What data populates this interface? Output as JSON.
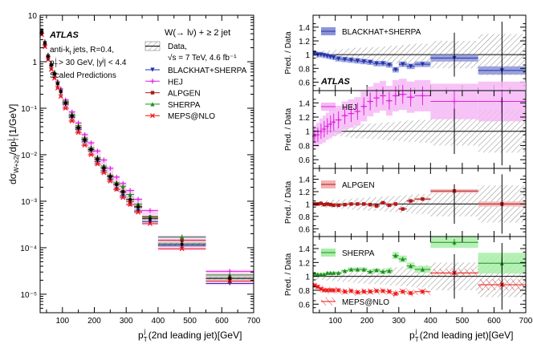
{
  "colors": {
    "data": "#000000",
    "blackhat": "#2233aa",
    "blackhat_band": "#8c94d8",
    "hej": "#e020e0",
    "hej_band": "#f6b8f6",
    "alpgen": "#b01818",
    "alpgen_band": "#f3b3b3",
    "sherpa": "#1f8f1f",
    "sherpa_band": "#a8eea8",
    "meps": "#ee1111",
    "hatch": "#777777"
  },
  "chart_data": [
    {
      "type": "line",
      "title": "W(→ lν) + ≥ 2 jet",
      "xlabel": "p_T^j (2nd leading jet)[GeV]",
      "ylabel": "dσ_{W+≥2j}/dp_T^j [1/GeV]",
      "xlim": [
        30,
        700
      ],
      "ylim": [
        4e-06,
        10
      ],
      "yscale": "log",
      "xticks": [
        100,
        200,
        300,
        400,
        500,
        600,
        700
      ],
      "ytick_labels": [
        "10",
        "1",
        "10⁻¹",
        "10⁻²",
        "10⁻³",
        "10⁻⁴",
        "10⁻⁵"
      ],
      "annotations": [
        "ATLAS",
        "anti-k_t jets, R=0.4,",
        "p_T^j > 30 GeV, |y^j| < 4.4",
        "Scaled Predictions",
        "√s = 7 TeV, 4.6 fb⁻¹"
      ],
      "bins": [
        [
          30,
          40
        ],
        [
          40,
          50
        ],
        [
          50,
          60
        ],
        [
          60,
          70
        ],
        [
          70,
          80
        ],
        [
          80,
          90
        ],
        [
          90,
          100
        ],
        [
          100,
          120
        ],
        [
          120,
          140
        ],
        [
          140,
          160
        ],
        [
          160,
          180
        ],
        [
          180,
          200
        ],
        [
          200,
          220
        ],
        [
          220,
          240
        ],
        [
          240,
          260
        ],
        [
          260,
          280
        ],
        [
          280,
          300
        ],
        [
          300,
          325
        ],
        [
          325,
          350
        ],
        [
          350,
          400
        ],
        [
          400,
          550
        ],
        [
          550,
          700
        ]
      ],
      "series": [
        {
          "name": "Data,",
          "values": [
            4.4,
            2.5,
            1.3,
            0.85,
            0.55,
            0.34,
            0.23,
            0.13,
            0.068,
            0.038,
            0.021,
            0.013,
            0.0081,
            0.0052,
            0.0034,
            0.0023,
            0.0016,
            0.0011,
            0.00075,
            0.00042,
            0.00012,
            2.2e-05
          ]
        },
        {
          "name": "BLACKHAT+SHERPA",
          "values": [
            4.5,
            2.5,
            1.3,
            0.84,
            0.54,
            0.33,
            0.22,
            0.12,
            0.063,
            0.035,
            0.019,
            0.012,
            0.0072,
            0.0045,
            0.003,
            0.0018,
            0.0013,
            0.00085,
            0.00062,
            0.00036,
            0.00011,
            1.7e-05
          ]
        },
        {
          "name": "HEJ",
          "values": [
            4.1,
            2.3,
            1.3,
            0.83,
            0.56,
            0.37,
            0.26,
            0.15,
            0.083,
            0.048,
            0.027,
            0.018,
            0.012,
            0.0077,
            0.0051,
            0.0033,
            0.0024,
            0.0017,
            0.0011,
            0.00063,
            0.00017,
            3.1e-05
          ]
        },
        {
          "name": "ALPGEN",
          "values": [
            4.4,
            2.5,
            1.3,
            0.84,
            0.55,
            0.34,
            0.23,
            0.13,
            0.068,
            0.038,
            0.021,
            0.013,
            0.0081,
            0.0052,
            0.0034,
            0.0023,
            0.0016,
            0.001,
            0.00078,
            0.00045,
            0.000145,
            2.2e-05
          ]
        },
        {
          "name": "SHERPA",
          "values": [
            4.6,
            2.6,
            1.35,
            0.87,
            0.58,
            0.36,
            0.24,
            0.14,
            0.074,
            0.042,
            0.023,
            0.014,
            0.0087,
            0.0057,
            0.0036,
            0.0025,
            0.0021,
            0.0014,
            0.00087,
            0.00047,
            0.00017,
            2.6e-05
          ]
        },
        {
          "name": "MEPS@NLO",
          "values": [
            3.8,
            2.1,
            1.1,
            0.68,
            0.44,
            0.27,
            0.18,
            0.1,
            0.053,
            0.03,
            0.016,
            0.01,
            0.0063,
            0.0041,
            0.0027,
            0.0018,
            0.0012,
            0.00085,
            0.00058,
            0.00033,
            9.5e-05,
            1.9e-05
          ]
        }
      ]
    },
    {
      "type": "line",
      "xlabel": "p_T^j (2nd leading jet)[GeV]",
      "ylabel": "Pred. / Data",
      "xlim": [
        30,
        700
      ],
      "ylim": [
        0.5,
        1.55
      ],
      "xticks": [
        100,
        200,
        300,
        400,
        500,
        600,
        700
      ],
      "yticks": [
        0.6,
        0.8,
        1.0,
        1.2,
        1.4
      ],
      "data_uncertainty": [
        0.05,
        0.05,
        0.05,
        0.06,
        0.06,
        0.06,
        0.07,
        0.07,
        0.08,
        0.09,
        0.1,
        0.1,
        0.11,
        0.11,
        0.12,
        0.13,
        0.13,
        0.14,
        0.15,
        0.16,
        0.2,
        0.3
      ],
      "panels": [
        {
          "name": "BLACKHAT+SHERPA",
          "ratio": [
            1.02,
            1.0,
            1.0,
            0.99,
            0.98,
            0.97,
            0.96,
            0.94,
            0.93,
            0.92,
            0.91,
            0.9,
            0.89,
            0.87,
            0.87,
            0.85,
            0.78,
            0.86,
            0.83,
            0.86,
            0.95,
            0.77
          ],
          "band": [
            0.04,
            0.04,
            0.04,
            0.04,
            0.04,
            0.04,
            0.04,
            0.04,
            0.04,
            0.04,
            0.04,
            0.04,
            0.04,
            0.04,
            0.04,
            0.04,
            0.04,
            0.04,
            0.04,
            0.04,
            0.05,
            0.06
          ]
        },
        {
          "name": "HEJ",
          "ratio": [
            0.93,
            0.95,
            1.0,
            1.03,
            1.07,
            1.1,
            1.13,
            1.16,
            1.22,
            1.25,
            1.28,
            1.35,
            1.42,
            1.47,
            1.5,
            1.43,
            1.5,
            1.52,
            1.48,
            1.5,
            1.42,
            1.42
          ],
          "band": [
            0.15,
            0.17,
            0.18,
            0.19,
            0.19,
            0.2,
            0.2,
            0.2,
            0.2,
            0.2,
            0.2,
            0.21,
            0.21,
            0.21,
            0.21,
            0.21,
            0.22,
            0.22,
            0.22,
            0.22,
            0.25,
            0.28
          ]
        },
        {
          "name": "ALPGEN",
          "ratio": [
            1.0,
            1.0,
            1.01,
            0.99,
            1.0,
            0.99,
            0.98,
            0.98,
            0.99,
            1.0,
            1.0,
            1.0,
            0.99,
            0.97,
            1.02,
            0.98,
            1.0,
            0.92,
            1.05,
            1.08,
            1.21,
            1.0
          ],
          "band": [
            0.02,
            0.02,
            0.02,
            0.02,
            0.02,
            0.02,
            0.02,
            0.02,
            0.02,
            0.02,
            0.02,
            0.02,
            0.02,
            0.02,
            0.02,
            0.02,
            0.02,
            0.02,
            0.02,
            0.02,
            0.03,
            0.04
          ]
        },
        {
          "name": "SHERPA",
          "ratio": [
            1.04,
            1.03,
            1.03,
            1.03,
            1.05,
            1.05,
            1.05,
            1.05,
            1.08,
            1.1,
            1.1,
            1.1,
            1.07,
            1.09,
            1.07,
            1.08,
            1.3,
            1.25,
            1.15,
            1.1,
            1.49,
            1.19
          ],
          "band": [
            0.02,
            0.02,
            0.02,
            0.02,
            0.02,
            0.02,
            0.02,
            0.02,
            0.02,
            0.03,
            0.03,
            0.03,
            0.03,
            0.03,
            0.03,
            0.04,
            0.05,
            0.05,
            0.05,
            0.05,
            0.08,
            0.15
          ]
        },
        {
          "name": "MEPS@NLO",
          "ratio": [
            0.87,
            0.85,
            0.82,
            0.8,
            0.8,
            0.8,
            0.8,
            0.8,
            0.78,
            0.79,
            0.77,
            0.78,
            0.78,
            0.79,
            0.79,
            0.78,
            0.75,
            0.78,
            0.76,
            0.78,
            1.05,
            0.88
          ],
          "band": [
            0.05,
            0.05,
            0.05,
            0.05,
            0.05,
            0.05,
            0.05,
            0.05,
            0.05,
            0.05,
            0.05,
            0.05,
            0.05,
            0.05,
            0.05,
            0.05,
            0.05,
            0.05,
            0.05,
            0.05,
            0.06,
            0.08
          ]
        }
      ]
    }
  ],
  "left": {
    "atlas": "ATLAS",
    "line1a": "anti-k",
    "line1sub": "t",
    "line1b": " jets, R=0.4,",
    "line2a": "p",
    "line2sub": "T",
    "line2sup": "j",
    "line2b": " > 30 GeV, |y",
    "line2sup2": "j",
    "line2c": "| < 4.4",
    "line3": "Scaled Predictions",
    "process": "W(→ lν) + ≥ 2 jet",
    "data_label": "Data,",
    "lumi": "√s = 7 TeV, 4.6 fb⁻¹",
    "legend": [
      "BLACKHAT+SHERPA",
      "HEJ",
      "ALPGEN",
      "SHERPA",
      "MEPS@NLO"
    ],
    "ylabel_main": "dσ",
    "ylabel_sub": "W+≥2j",
    "ylabel_mid": "/dp",
    "ylabel_sub2": "T",
    "ylabel_sup2": "j",
    "ylabel_tail": " [1/GeV]",
    "xlabel_p": "p",
    "xlabel_sub": "T",
    "xlabel_sup": "j",
    "xlabel_tail": " (2nd leading jet)[GeV]"
  },
  "right": {
    "atlas": "ATLAS",
    "ylabel": "Pred. / Data",
    "legend": [
      "BLACKHAT+SHERPA",
      "HEJ",
      "ALPGEN",
      "SHERPA",
      "MEPS@NLO"
    ],
    "xlabel_p": "p",
    "xlabel_sub": "T",
    "xlabel_sup": "j",
    "xlabel_tail": " (2nd leading jet)[GeV]"
  }
}
